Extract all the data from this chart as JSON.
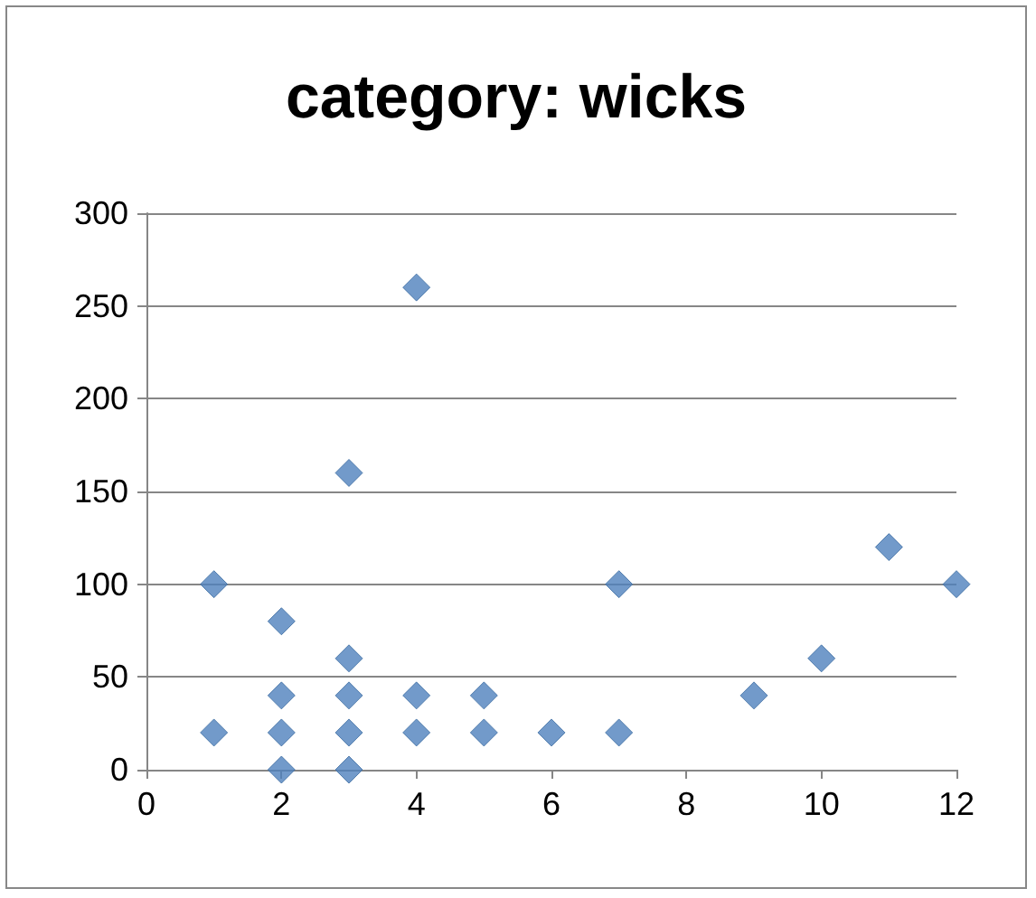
{
  "chart_data": {
    "type": "scatter",
    "title": "category: wicks",
    "x": [
      1,
      1,
      2,
      2,
      2,
      2,
      3,
      3,
      3,
      3,
      3,
      4,
      4,
      4,
      5,
      5,
      6,
      7,
      7,
      9,
      10,
      11,
      12
    ],
    "values": [
      100,
      20,
      80,
      40,
      20,
      0,
      160,
      60,
      40,
      20,
      0,
      260,
      40,
      20,
      40,
      20,
      20,
      100,
      20,
      40,
      60,
      120,
      100
    ],
    "color": "#4f81bd",
    "marker": "diamond",
    "grid": "y",
    "xlim": [
      0,
      12
    ],
    "xticks": [
      0,
      2,
      4,
      6,
      8,
      10,
      12
    ],
    "ylim": [
      0,
      300
    ],
    "yticks": [
      0,
      50,
      100,
      150,
      200,
      250,
      300
    ]
  }
}
